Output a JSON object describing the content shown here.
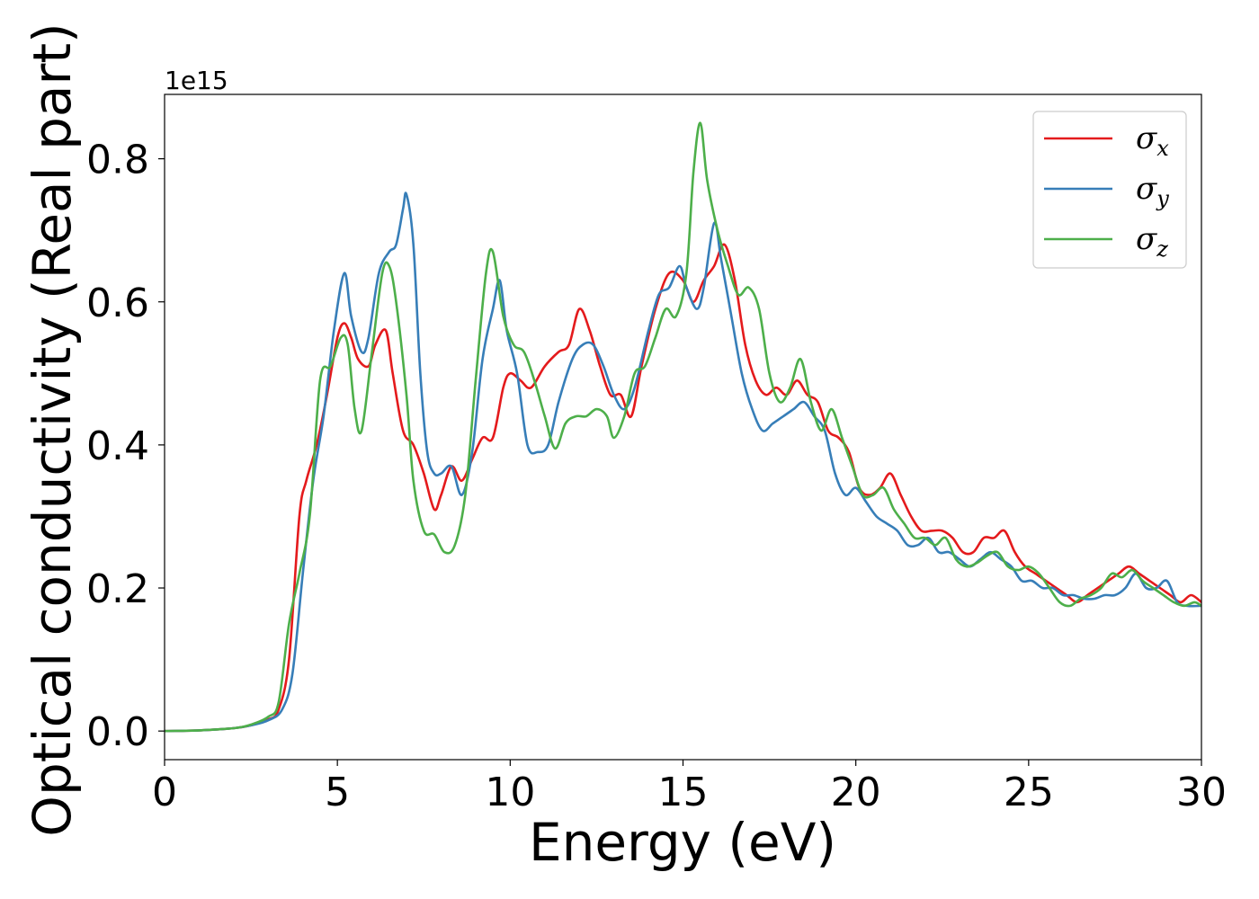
{
  "chart_data": {
    "type": "line",
    "title": "",
    "xlabel": "Energy (eV)",
    "ylabel": "Optical conductivity (Real part)",
    "y_offset_label": "1e15",
    "xlim": [
      0,
      30
    ],
    "ylim": [
      -0.04,
      0.89
    ],
    "x_ticks": [
      0,
      5,
      10,
      15,
      20,
      25,
      30
    ],
    "x_tick_labels": [
      "0",
      "5",
      "10",
      "15",
      "20",
      "25",
      "30"
    ],
    "y_ticks": [
      0.0,
      0.2,
      0.4,
      0.6,
      0.8
    ],
    "y_tick_labels": [
      "0.0",
      "0.2",
      "0.4",
      "0.6",
      "0.8"
    ],
    "grid": false,
    "legend_position": "top-right",
    "series": [
      {
        "name": "σ_x",
        "symbol": "σ",
        "subscript": "x",
        "color": "#e41a1c",
        "points": [
          [
            0,
            0.0
          ],
          [
            1,
            0.001
          ],
          [
            2,
            0.004
          ],
          [
            2.5,
            0.008
          ],
          [
            3,
            0.016
          ],
          [
            3.3,
            0.03
          ],
          [
            3.6,
            0.1
          ],
          [
            3.9,
            0.3
          ],
          [
            4.1,
            0.35
          ],
          [
            4.4,
            0.4
          ],
          [
            4.7,
            0.47
          ],
          [
            5,
            0.55
          ],
          [
            5.2,
            0.57
          ],
          [
            5.4,
            0.55
          ],
          [
            5.6,
            0.52
          ],
          [
            5.9,
            0.51
          ],
          [
            6.1,
            0.54
          ],
          [
            6.4,
            0.56
          ],
          [
            6.6,
            0.5
          ],
          [
            6.9,
            0.42
          ],
          [
            7.2,
            0.4
          ],
          [
            7.5,
            0.36
          ],
          [
            7.8,
            0.31
          ],
          [
            8.0,
            0.33
          ],
          [
            8.3,
            0.37
          ],
          [
            8.6,
            0.35
          ],
          [
            8.9,
            0.38
          ],
          [
            9.2,
            0.41
          ],
          [
            9.5,
            0.41
          ],
          [
            9.8,
            0.48
          ],
          [
            10.0,
            0.5
          ],
          [
            10.3,
            0.49
          ],
          [
            10.6,
            0.48
          ],
          [
            11.0,
            0.51
          ],
          [
            11.4,
            0.53
          ],
          [
            11.7,
            0.54
          ],
          [
            12.0,
            0.59
          ],
          [
            12.3,
            0.56
          ],
          [
            12.6,
            0.51
          ],
          [
            12.9,
            0.47
          ],
          [
            13.2,
            0.47
          ],
          [
            13.5,
            0.44
          ],
          [
            13.8,
            0.51
          ],
          [
            14.2,
            0.59
          ],
          [
            14.6,
            0.64
          ],
          [
            15.0,
            0.63
          ],
          [
            15.3,
            0.6
          ],
          [
            15.6,
            0.63
          ],
          [
            15.9,
            0.65
          ],
          [
            16.2,
            0.68
          ],
          [
            16.5,
            0.63
          ],
          [
            16.8,
            0.54
          ],
          [
            17.1,
            0.49
          ],
          [
            17.4,
            0.47
          ],
          [
            17.7,
            0.48
          ],
          [
            18.0,
            0.47
          ],
          [
            18.3,
            0.49
          ],
          [
            18.6,
            0.47
          ],
          [
            18.9,
            0.46
          ],
          [
            19.2,
            0.42
          ],
          [
            19.5,
            0.41
          ],
          [
            19.8,
            0.39
          ],
          [
            20.1,
            0.34
          ],
          [
            20.4,
            0.33
          ],
          [
            20.7,
            0.34
          ],
          [
            21.0,
            0.36
          ],
          [
            21.3,
            0.33
          ],
          [
            21.6,
            0.3
          ],
          [
            21.9,
            0.28
          ],
          [
            22.2,
            0.28
          ],
          [
            22.5,
            0.28
          ],
          [
            22.8,
            0.27
          ],
          [
            23.1,
            0.25
          ],
          [
            23.4,
            0.25
          ],
          [
            23.7,
            0.27
          ],
          [
            24.0,
            0.27
          ],
          [
            24.3,
            0.28
          ],
          [
            24.6,
            0.25
          ],
          [
            24.9,
            0.23
          ],
          [
            25.2,
            0.22
          ],
          [
            25.5,
            0.21
          ],
          [
            25.8,
            0.2
          ],
          [
            26.1,
            0.19
          ],
          [
            26.4,
            0.18
          ],
          [
            26.7,
            0.19
          ],
          [
            27.0,
            0.2
          ],
          [
            27.3,
            0.21
          ],
          [
            27.6,
            0.22
          ],
          [
            27.9,
            0.23
          ],
          [
            28.2,
            0.22
          ],
          [
            28.5,
            0.21
          ],
          [
            28.8,
            0.2
          ],
          [
            29.1,
            0.19
          ],
          [
            29.4,
            0.18
          ],
          [
            29.7,
            0.19
          ],
          [
            30.0,
            0.18
          ]
        ]
      },
      {
        "name": "σ_y",
        "symbol": "σ",
        "subscript": "y",
        "color": "#377eb8",
        "points": [
          [
            0,
            0.0
          ],
          [
            1,
            0.001
          ],
          [
            2,
            0.004
          ],
          [
            2.5,
            0.008
          ],
          [
            3,
            0.015
          ],
          [
            3.4,
            0.03
          ],
          [
            3.7,
            0.08
          ],
          [
            4.0,
            0.22
          ],
          [
            4.3,
            0.35
          ],
          [
            4.6,
            0.44
          ],
          [
            4.9,
            0.56
          ],
          [
            5.2,
            0.64
          ],
          [
            5.4,
            0.58
          ],
          [
            5.7,
            0.53
          ],
          [
            5.9,
            0.55
          ],
          [
            6.2,
            0.64
          ],
          [
            6.5,
            0.67
          ],
          [
            6.7,
            0.68
          ],
          [
            6.9,
            0.73
          ],
          [
            7.0,
            0.75
          ],
          [
            7.2,
            0.68
          ],
          [
            7.4,
            0.5
          ],
          [
            7.6,
            0.39
          ],
          [
            7.8,
            0.36
          ],
          [
            8.0,
            0.36
          ],
          [
            8.3,
            0.37
          ],
          [
            8.6,
            0.33
          ],
          [
            8.9,
            0.39
          ],
          [
            9.2,
            0.52
          ],
          [
            9.5,
            0.59
          ],
          [
            9.7,
            0.63
          ],
          [
            9.9,
            0.56
          ],
          [
            10.2,
            0.5
          ],
          [
            10.5,
            0.4
          ],
          [
            10.8,
            0.39
          ],
          [
            11.1,
            0.4
          ],
          [
            11.4,
            0.46
          ],
          [
            11.8,
            0.52
          ],
          [
            12.1,
            0.54
          ],
          [
            12.4,
            0.54
          ],
          [
            12.7,
            0.51
          ],
          [
            13.0,
            0.47
          ],
          [
            13.3,
            0.45
          ],
          [
            13.6,
            0.48
          ],
          [
            14.0,
            0.56
          ],
          [
            14.3,
            0.61
          ],
          [
            14.6,
            0.62
          ],
          [
            14.9,
            0.65
          ],
          [
            15.1,
            0.62
          ],
          [
            15.4,
            0.59
          ],
          [
            15.6,
            0.62
          ],
          [
            15.9,
            0.71
          ],
          [
            16.1,
            0.66
          ],
          [
            16.4,
            0.58
          ],
          [
            16.7,
            0.5
          ],
          [
            17.0,
            0.45
          ],
          [
            17.3,
            0.42
          ],
          [
            17.6,
            0.43
          ],
          [
            17.9,
            0.44
          ],
          [
            18.2,
            0.45
          ],
          [
            18.5,
            0.46
          ],
          [
            18.8,
            0.44
          ],
          [
            19.1,
            0.42
          ],
          [
            19.4,
            0.36
          ],
          [
            19.7,
            0.33
          ],
          [
            20.0,
            0.34
          ],
          [
            20.3,
            0.32
          ],
          [
            20.6,
            0.3
          ],
          [
            20.9,
            0.29
          ],
          [
            21.2,
            0.28
          ],
          [
            21.5,
            0.26
          ],
          [
            21.8,
            0.26
          ],
          [
            22.1,
            0.27
          ],
          [
            22.4,
            0.25
          ],
          [
            22.7,
            0.25
          ],
          [
            23.0,
            0.24
          ],
          [
            23.3,
            0.23
          ],
          [
            23.6,
            0.24
          ],
          [
            23.9,
            0.25
          ],
          [
            24.2,
            0.24
          ],
          [
            24.5,
            0.23
          ],
          [
            24.8,
            0.21
          ],
          [
            25.1,
            0.21
          ],
          [
            25.4,
            0.2
          ],
          [
            25.7,
            0.2
          ],
          [
            26.0,
            0.19
          ],
          [
            26.3,
            0.19
          ],
          [
            26.6,
            0.185
          ],
          [
            26.9,
            0.185
          ],
          [
            27.2,
            0.19
          ],
          [
            27.5,
            0.19
          ],
          [
            27.8,
            0.2
          ],
          [
            28.1,
            0.22
          ],
          [
            28.4,
            0.2
          ],
          [
            28.7,
            0.2
          ],
          [
            29.0,
            0.21
          ],
          [
            29.3,
            0.18
          ],
          [
            29.6,
            0.175
          ],
          [
            30.0,
            0.175
          ]
        ]
      },
      {
        "name": "σ_z",
        "symbol": "σ",
        "subscript": "z",
        "color": "#4daf4a",
        "points": [
          [
            0,
            0.0
          ],
          [
            1,
            0.001
          ],
          [
            2,
            0.004
          ],
          [
            2.5,
            0.009
          ],
          [
            3,
            0.02
          ],
          [
            3.3,
            0.04
          ],
          [
            3.6,
            0.15
          ],
          [
            3.9,
            0.22
          ],
          [
            4.2,
            0.3
          ],
          [
            4.5,
            0.49
          ],
          [
            4.8,
            0.51
          ],
          [
            5.1,
            0.55
          ],
          [
            5.3,
            0.54
          ],
          [
            5.5,
            0.45
          ],
          [
            5.7,
            0.42
          ],
          [
            6.0,
            0.53
          ],
          [
            6.3,
            0.64
          ],
          [
            6.5,
            0.65
          ],
          [
            6.7,
            0.6
          ],
          [
            7.0,
            0.47
          ],
          [
            7.2,
            0.35
          ],
          [
            7.5,
            0.28
          ],
          [
            7.8,
            0.275
          ],
          [
            8.1,
            0.25
          ],
          [
            8.4,
            0.26
          ],
          [
            8.7,
            0.33
          ],
          [
            9.0,
            0.49
          ],
          [
            9.3,
            0.64
          ],
          [
            9.5,
            0.67
          ],
          [
            9.8,
            0.58
          ],
          [
            10.1,
            0.54
          ],
          [
            10.4,
            0.53
          ],
          [
            10.7,
            0.49
          ],
          [
            11.0,
            0.44
          ],
          [
            11.3,
            0.395
          ],
          [
            11.6,
            0.43
          ],
          [
            11.9,
            0.44
          ],
          [
            12.2,
            0.44
          ],
          [
            12.5,
            0.45
          ],
          [
            12.8,
            0.44
          ],
          [
            13.0,
            0.41
          ],
          [
            13.3,
            0.44
          ],
          [
            13.6,
            0.5
          ],
          [
            13.9,
            0.51
          ],
          [
            14.2,
            0.55
          ],
          [
            14.5,
            0.59
          ],
          [
            14.8,
            0.58
          ],
          [
            15.1,
            0.64
          ],
          [
            15.3,
            0.78
          ],
          [
            15.5,
            0.85
          ],
          [
            15.7,
            0.77
          ],
          [
            16.0,
            0.7
          ],
          [
            16.3,
            0.65
          ],
          [
            16.6,
            0.61
          ],
          [
            16.9,
            0.62
          ],
          [
            17.2,
            0.59
          ],
          [
            17.5,
            0.5
          ],
          [
            17.8,
            0.46
          ],
          [
            18.1,
            0.48
          ],
          [
            18.4,
            0.52
          ],
          [
            18.7,
            0.46
          ],
          [
            19.0,
            0.42
          ],
          [
            19.3,
            0.45
          ],
          [
            19.6,
            0.41
          ],
          [
            19.9,
            0.37
          ],
          [
            20.2,
            0.33
          ],
          [
            20.5,
            0.33
          ],
          [
            20.8,
            0.34
          ],
          [
            21.1,
            0.31
          ],
          [
            21.4,
            0.29
          ],
          [
            21.7,
            0.27
          ],
          [
            22.0,
            0.27
          ],
          [
            22.3,
            0.26
          ],
          [
            22.6,
            0.27
          ],
          [
            22.9,
            0.24
          ],
          [
            23.2,
            0.23
          ],
          [
            23.5,
            0.235
          ],
          [
            23.8,
            0.245
          ],
          [
            24.1,
            0.25
          ],
          [
            24.4,
            0.23
          ],
          [
            24.7,
            0.225
          ],
          [
            25.0,
            0.23
          ],
          [
            25.3,
            0.22
          ],
          [
            25.6,
            0.2
          ],
          [
            25.9,
            0.18
          ],
          [
            26.2,
            0.175
          ],
          [
            26.5,
            0.185
          ],
          [
            26.8,
            0.19
          ],
          [
            27.1,
            0.2
          ],
          [
            27.4,
            0.22
          ],
          [
            27.7,
            0.215
          ],
          [
            28.0,
            0.225
          ],
          [
            28.3,
            0.21
          ],
          [
            28.6,
            0.2
          ],
          [
            28.9,
            0.19
          ],
          [
            29.2,
            0.18
          ],
          [
            29.5,
            0.175
          ],
          [
            29.8,
            0.18
          ],
          [
            30.0,
            0.175
          ]
        ]
      }
    ]
  }
}
